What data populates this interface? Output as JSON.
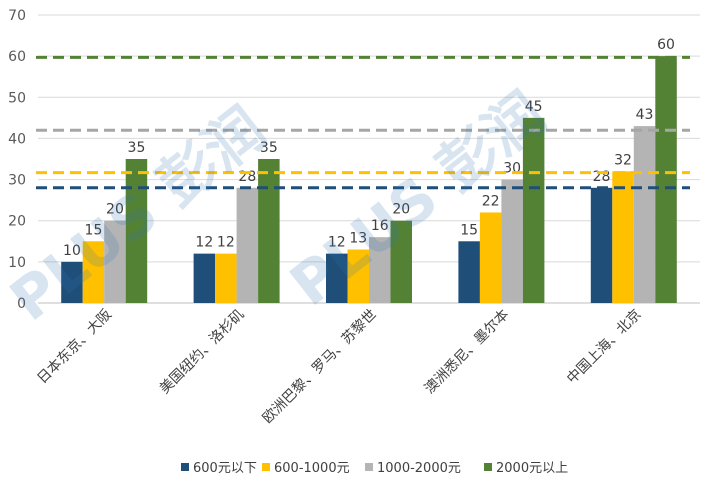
{
  "chart_data": {
    "type": "bar",
    "categories": [
      "日本东京、大阪",
      "美国纽约、洛杉矶",
      "欧洲巴黎、罗马、苏黎世",
      "澳洲悉尼、墨尔本",
      "中国上海、北京"
    ],
    "series": [
      {
        "name": "600元以下",
        "color": "#1f4e79",
        "values": [
          10,
          12,
          12,
          15,
          28
        ]
      },
      {
        "name": "600-1000元",
        "color": "#ffc000",
        "values": [
          15,
          12,
          13,
          22,
          32
        ]
      },
      {
        "name": "1000-2000元",
        "color": "#b4b4b4",
        "values": [
          20,
          28,
          16,
          30,
          43
        ]
      },
      {
        "name": "2000元以上",
        "color": "#548235",
        "values": [
          35,
          35,
          20,
          45,
          60
        ]
      }
    ],
    "reference_lines": [
      {
        "value": 28,
        "color": "#1f4e79"
      },
      {
        "value": 31.7,
        "color": "#ffc000"
      },
      {
        "value": 42,
        "color": "#a6a6a6"
      },
      {
        "value": 59.7,
        "color": "#548235"
      }
    ],
    "ylim": [
      0,
      70
    ],
    "yticks": [
      0,
      10,
      20,
      30,
      40,
      50,
      60,
      70
    ],
    "grid": true,
    "legend_position": "bottom",
    "watermark": "PLUS 彭润"
  }
}
